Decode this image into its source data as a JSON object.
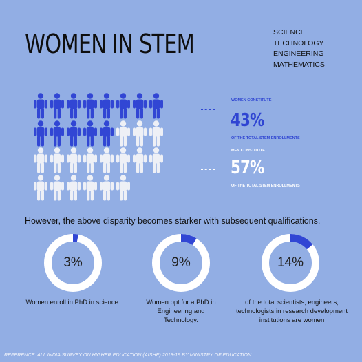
{
  "header": {
    "title": "WOMEN IN STEM",
    "fields": [
      "SCIENCE",
      "TECHNOLOGY",
      "ENGINEERING",
      "MATHEMATICS"
    ]
  },
  "pictogram": {
    "women_count": 13,
    "men_count": 17,
    "women_color": "#3146d4",
    "men_color": "#eef0f6"
  },
  "stats": {
    "women": {
      "label": "WOMEN CONSTITUTE",
      "percent": "43%",
      "sub": "OF THE TOTAL STEM ENROLLMENTS",
      "color": "#2f45d2"
    },
    "men": {
      "label": "MEN CONSTITUTE",
      "percent": "57%",
      "sub": "OF THE TOTAL STEM  ENROLLMENTS",
      "color": "#ffffff"
    }
  },
  "disparity_text": "However, the above disparity becomes starker with subsequent qualifications.",
  "donuts": [
    {
      "value": 3,
      "label": "3%",
      "caption": "Women enroll in PhD in science."
    },
    {
      "value": 9,
      "label": "9%",
      "caption": "Women opt for a PhD in Engineering and Technology."
    },
    {
      "value": 14,
      "label": "14%",
      "caption": "of the total scientists, engineers, technologists in research development institutions are women"
    }
  ],
  "colors": {
    "background": "#92aee4",
    "accent": "#3146d4",
    "ring": "#ffffff"
  },
  "reference": "REFERENCE: ALL INDIA SURVEY ON HIGHER EDUCATION (AISHE) 2018-19 BY MINISTRY OF EDUCATION."
}
